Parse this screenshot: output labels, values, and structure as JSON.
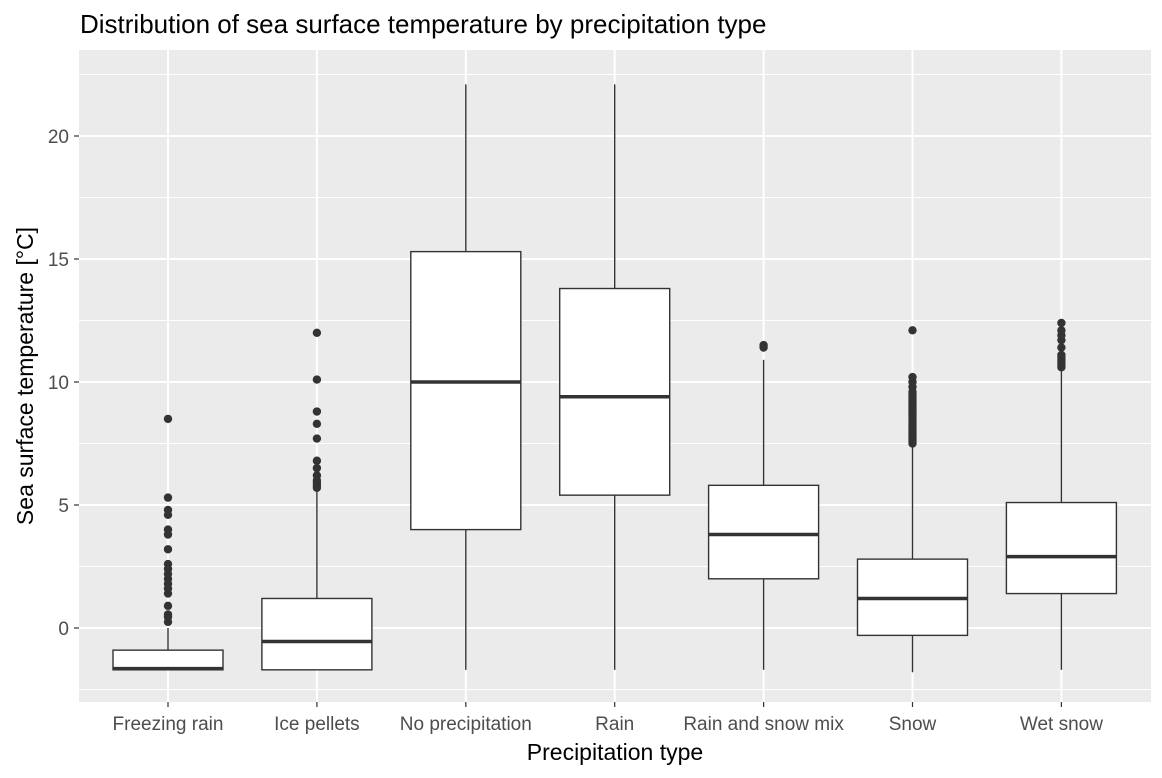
{
  "chart_data": {
    "type": "boxplot",
    "title": "Distribution of sea surface temperature by precipitation type",
    "xlabel": "Precipitation type",
    "ylabel": "Sea surface temperature [°C]",
    "ylim": [
      -3,
      23
    ],
    "yticks": [
      0,
      5,
      10,
      15,
      20
    ],
    "grid": true,
    "colors": {
      "panel": "#ebebeb",
      "grid": "#ffffff",
      "line": "#333333",
      "box_fill": "#ffffff"
    },
    "categories": [
      "Freezing rain",
      "Ice pellets",
      "No precipitation",
      "Rain",
      "Rain and snow mix",
      "Snow",
      "Wet snow"
    ],
    "boxes": [
      {
        "name": "Freezing rain",
        "whisker_low": -1.7,
        "q1": -1.7,
        "median": -1.65,
        "q3": -0.9,
        "whisker_high": 0.0,
        "outliers": [
          0.25,
          0.45,
          0.55,
          0.9,
          1.4,
          1.6,
          1.8,
          2.0,
          2.2,
          2.4,
          2.6,
          3.2,
          3.8,
          4.0,
          4.6,
          4.8,
          5.3,
          8.5
        ]
      },
      {
        "name": "Ice pellets",
        "whisker_low": -1.7,
        "q1": -1.7,
        "median": -0.55,
        "q3": 1.2,
        "whisker_high": 5.6,
        "outliers": [
          5.7,
          5.8,
          5.9,
          6.0,
          6.2,
          6.5,
          6.8,
          7.7,
          8.3,
          8.8,
          10.1,
          12.0
        ]
      },
      {
        "name": "No precipitation",
        "whisker_low": -1.7,
        "q1": 4.0,
        "median": 10.0,
        "q3": 15.3,
        "whisker_high": 22.1,
        "outliers": []
      },
      {
        "name": "Rain",
        "whisker_low": -1.7,
        "q1": 5.4,
        "median": 9.4,
        "q3": 13.8,
        "whisker_high": 22.1,
        "outliers": []
      },
      {
        "name": "Rain and snow mix",
        "whisker_low": -1.7,
        "q1": 2.0,
        "median": 3.8,
        "q3": 5.8,
        "whisker_high": 10.9,
        "outliers": [
          11.4,
          11.5
        ]
      },
      {
        "name": "Snow",
        "whisker_low": -1.8,
        "q1": -0.3,
        "median": 1.2,
        "q3": 2.8,
        "whisker_high": 7.4,
        "outliers": [
          7.5,
          7.6,
          7.7,
          7.8,
          7.9,
          8.0,
          8.1,
          8.2,
          8.3,
          8.4,
          8.5,
          8.6,
          8.7,
          8.8,
          8.9,
          9.0,
          9.1,
          9.2,
          9.3,
          9.4,
          9.5,
          9.6,
          9.8,
          10.0,
          10.2,
          12.1
        ]
      },
      {
        "name": "Wet snow",
        "whisker_low": -1.7,
        "q1": 1.4,
        "median": 2.9,
        "q3": 5.1,
        "whisker_high": 10.5,
        "outliers": [
          10.6,
          10.7,
          10.8,
          10.9,
          11.0,
          11.1,
          11.4,
          11.7,
          11.9,
          12.1,
          12.4
        ]
      }
    ]
  }
}
